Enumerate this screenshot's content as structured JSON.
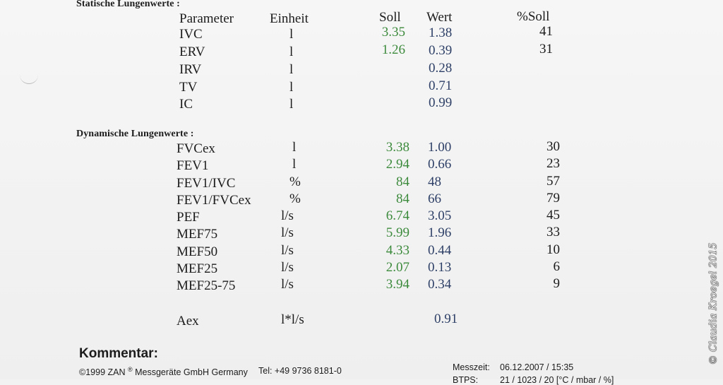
{
  "static": {
    "title": "Statische Lungenwerte :",
    "headers": {
      "parameter": "Parameter",
      "einheit": "Einheit",
      "soll": "Soll",
      "wert": "Wert",
      "pct": "%Soll"
    },
    "rows": [
      {
        "param": "IVC",
        "unit": "l",
        "soll": "3.35",
        "wert": "1.38",
        "pct": "41"
      },
      {
        "param": "ERV",
        "unit": "l",
        "soll": "1.26",
        "wert": "0.39",
        "pct": "31"
      },
      {
        "param": "IRV",
        "unit": "l",
        "soll": "",
        "wert": "0.28",
        "pct": ""
      },
      {
        "param": "TV",
        "unit": "l",
        "soll": "",
        "wert": "0.71",
        "pct": ""
      },
      {
        "param": "IC",
        "unit": "l",
        "soll": "",
        "wert": "0.99",
        "pct": ""
      }
    ]
  },
  "dynamic": {
    "title": "Dynamische Lungenwerte :",
    "rows": [
      {
        "param": "FVCex",
        "unit": "l",
        "soll": "3.38",
        "wert": "1.00",
        "pct": "30"
      },
      {
        "param": "FEV1",
        "unit": "l",
        "soll": "2.94",
        "wert": "0.66",
        "pct": "23"
      },
      {
        "param": "FEV1/IVC",
        "unit": "%",
        "soll": "84",
        "wert": "48",
        "pct": "57"
      },
      {
        "param": "FEV1/FVCex",
        "unit": "%",
        "soll": "84",
        "wert": "66",
        "pct": "79"
      },
      {
        "param": "PEF",
        "unit": "l/s",
        "soll": "6.74",
        "wert": "3.05",
        "pct": "45"
      },
      {
        "param": "MEF75",
        "unit": "l/s",
        "soll": "5.99",
        "wert": "1.96",
        "pct": "33"
      },
      {
        "param": "MEF50",
        "unit": "l/s",
        "soll": "4.33",
        "wert": "0.44",
        "pct": "10"
      },
      {
        "param": "MEF25",
        "unit": "l/s",
        "soll": "2.07",
        "wert": "0.13",
        "pct": "6"
      },
      {
        "param": "MEF25-75",
        "unit": "l/s",
        "soll": "3.94",
        "wert": "0.34",
        "pct": "9"
      }
    ],
    "aex": {
      "param": "Aex",
      "unit": "l*l/s",
      "wert": "0.91"
    }
  },
  "kommentar": "Kommentar:",
  "footer": {
    "copyright_pre": "©1999 ZAN",
    "registered": "®",
    "copyright_post": " Messgeräte GmbH Germany",
    "tel": "Tel: +49 9736 8181-0",
    "messzeit_label": "Messzeit:",
    "messzeit_value": "06.12.2007 / 15:35",
    "btps_label": "BTPS:",
    "btps_value": "21 / 1023 / 20 [°C / mbar / %]"
  },
  "watermark": "© Claudia Kroegel 2015",
  "colors": {
    "soll": "#3c8a3c",
    "wert": "#2d3f66"
  }
}
